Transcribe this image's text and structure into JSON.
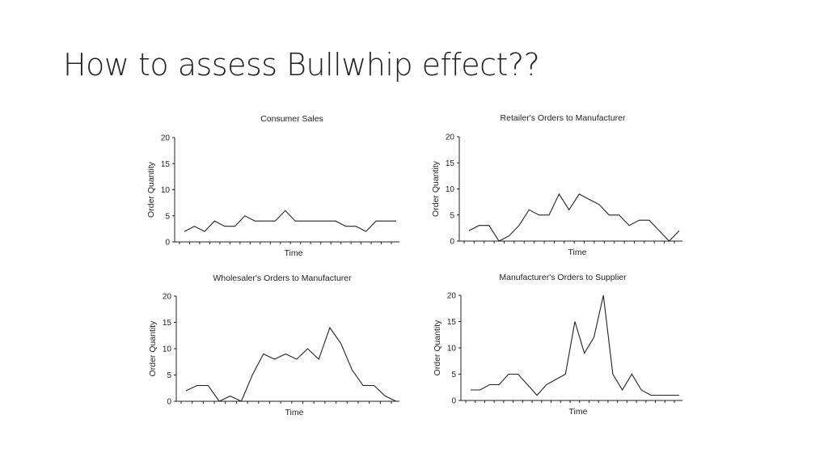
{
  "slide": {
    "title": "How to assess Bullwhip effect??"
  },
  "chart_data": [
    {
      "type": "line",
      "title": "Consumer Sales",
      "xlabel": "Time",
      "ylabel": "Order Quantity",
      "ylim": [
        0,
        20
      ],
      "yticks": [
        0,
        5,
        10,
        15,
        20
      ],
      "series": [
        {
          "values": [
            2,
            3,
            2,
            4,
            3,
            3,
            5,
            4,
            4,
            4,
            6,
            4,
            4,
            4,
            4,
            4,
            3,
            3,
            2,
            4,
            4,
            4
          ]
        }
      ]
    },
    {
      "type": "line",
      "title": "Retailer's Orders to Manufacturer",
      "xlabel": "Time",
      "ylabel": "Order Quantity",
      "ylim": [
        0,
        20
      ],
      "yticks": [
        0,
        5,
        10,
        15,
        20
      ],
      "series": [
        {
          "values": [
            2,
            3,
            3,
            0,
            1,
            3,
            6,
            5,
            5,
            9,
            6,
            9,
            8,
            7,
            5,
            5,
            3,
            4,
            4,
            2,
            0,
            2
          ]
        }
      ]
    },
    {
      "type": "line",
      "title": "Wholesaler's Orders to Manufacturer",
      "xlabel": "Time",
      "ylabel": "Order Quantity",
      "ylim": [
        0,
        20
      ],
      "yticks": [
        0,
        5,
        10,
        15,
        20
      ],
      "series": [
        {
          "values": [
            2,
            3,
            3,
            0,
            1,
            0,
            5,
            9,
            8,
            9,
            8,
            10,
            8,
            14,
            11,
            6,
            3,
            3,
            1,
            0
          ]
        }
      ]
    },
    {
      "type": "line",
      "title": "Manufacturer's Orders to Supplier",
      "xlabel": "Time",
      "ylabel": "Order Quantity",
      "ylim": [
        0,
        20
      ],
      "yticks": [
        0,
        5,
        10,
        15,
        20
      ],
      "series": [
        {
          "values": [
            2,
            2,
            3,
            3,
            5,
            5,
            3,
            1,
            3,
            4,
            5,
            15,
            9,
            12,
            20,
            5,
            2,
            5,
            2,
            1,
            1,
            1,
            1
          ]
        }
      ]
    }
  ]
}
